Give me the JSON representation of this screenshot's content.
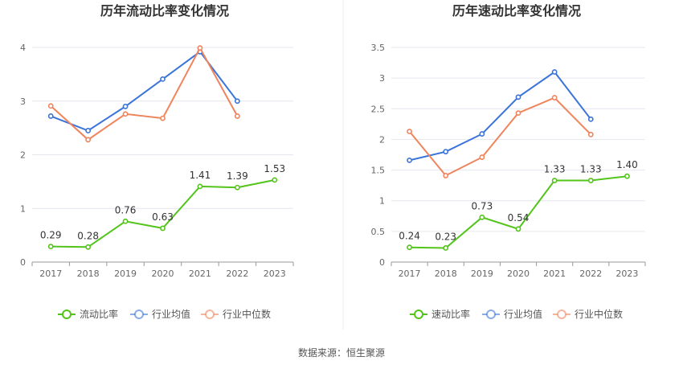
{
  "source_text": "数据来源：恒生聚源",
  "chart_data": [
    {
      "type": "line",
      "title": "历年流动比率变化情况",
      "categories": [
        "2017",
        "2018",
        "2019",
        "2020",
        "2021",
        "2022",
        "2023"
      ],
      "ylim": [
        0,
        4
      ],
      "yticks": [
        0,
        1,
        2,
        3,
        4
      ],
      "ytick_labels": [
        "0",
        "1",
        "2",
        "3",
        "4"
      ],
      "grid": true,
      "legend_position": "bottom",
      "series": [
        {
          "name": "流动比率",
          "color": "#52c41a",
          "values": [
            0.29,
            0.28,
            0.76,
            0.63,
            1.41,
            1.39,
            1.53
          ],
          "labels": [
            "0.29",
            "0.28",
            "0.76",
            "0.63",
            "1.41",
            "1.39",
            "1.53"
          ]
        },
        {
          "name": "行业均值",
          "color": "#3b74d9",
          "values": [
            2.72,
            2.45,
            2.9,
            3.41,
            3.92,
            3.0,
            null
          ]
        },
        {
          "name": "行业中位数",
          "color": "#f0845c",
          "values": [
            2.91,
            2.28,
            2.76,
            2.68,
            3.99,
            2.72,
            null
          ]
        }
      ]
    },
    {
      "type": "line",
      "title": "历年速动比率变化情况",
      "categories": [
        "2017",
        "2018",
        "2019",
        "2020",
        "2021",
        "2022",
        "2023"
      ],
      "ylim": [
        0,
        3.5
      ],
      "yticks": [
        0,
        0.5,
        1,
        1.5,
        2,
        2.5,
        3,
        3.5
      ],
      "ytick_labels": [
        "0",
        "0.5",
        "1",
        "1.5",
        "2",
        "2.5",
        "3",
        "3.5"
      ],
      "grid": true,
      "legend_position": "bottom",
      "series": [
        {
          "name": "速动比率",
          "color": "#52c41a",
          "values": [
            0.24,
            0.23,
            0.73,
            0.54,
            1.33,
            1.33,
            1.4
          ],
          "labels": [
            "0.24",
            "0.23",
            "0.73",
            "0.54",
            "1.33",
            "1.33",
            "1.40"
          ]
        },
        {
          "name": "行业均值",
          "color": "#3b74d9",
          "values": [
            1.66,
            1.8,
            2.09,
            2.69,
            3.1,
            2.33,
            null
          ]
        },
        {
          "name": "行业中位数",
          "color": "#f0845c",
          "values": [
            2.13,
            1.41,
            1.71,
            2.43,
            2.68,
            2.08,
            null
          ]
        }
      ]
    }
  ]
}
